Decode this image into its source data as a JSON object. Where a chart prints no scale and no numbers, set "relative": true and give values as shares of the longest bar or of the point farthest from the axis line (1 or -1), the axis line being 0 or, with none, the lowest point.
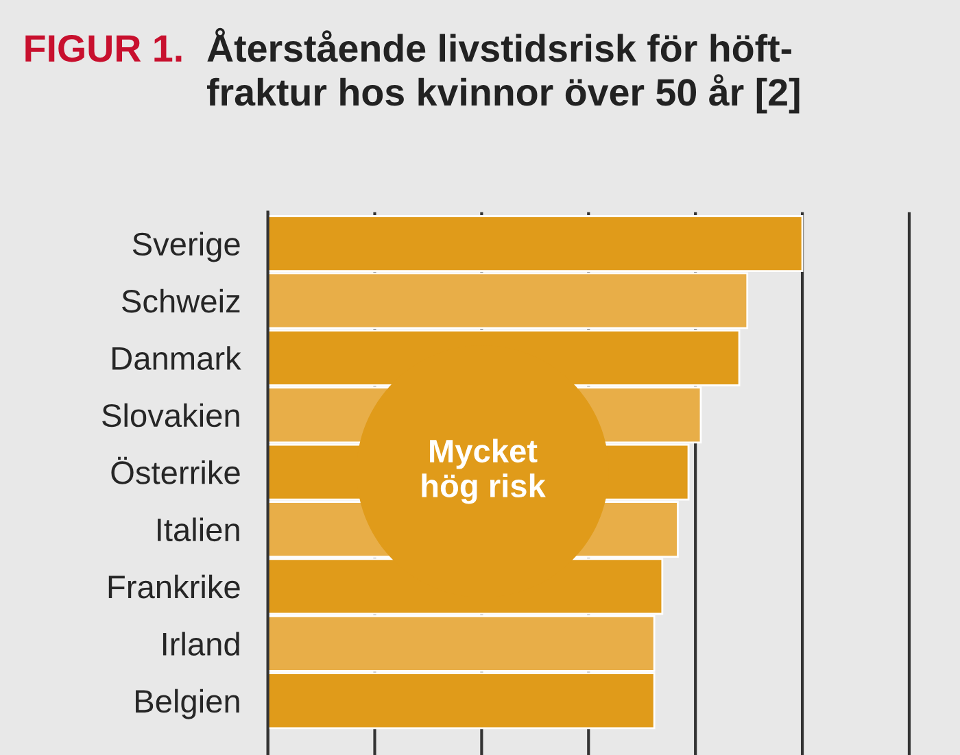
{
  "chart_data": {
    "type": "bar",
    "orientation": "horizontal",
    "relative": true,
    "title": "Återstående livstidsrisk för höft-\nfraktur hos kvinnor över 50 år [2]",
    "categories": [
      "Sverige",
      "Schweiz",
      "Danmark",
      "Slovakien",
      "Österrike",
      "Italien",
      "Frankrike",
      "Irland",
      "Belgien"
    ],
    "values": [
      1,
      0.897,
      0.882,
      0.81,
      0.787,
      0.767,
      0.738,
      0.723,
      0.723
    ],
    "colors": [
      "#e09b1a",
      "#e8ae48",
      "#e09b1a",
      "#e8ae48",
      "#e09b1a",
      "#e8ae48",
      "#e09b1a",
      "#e8ae48",
      "#e09b1a"
    ],
    "annotations": [
      "FIGUR 1.",
      "Mycket\nhög risk"
    ],
    "grid": "x",
    "legend": false,
    "tick_labels": "y"
  }
}
